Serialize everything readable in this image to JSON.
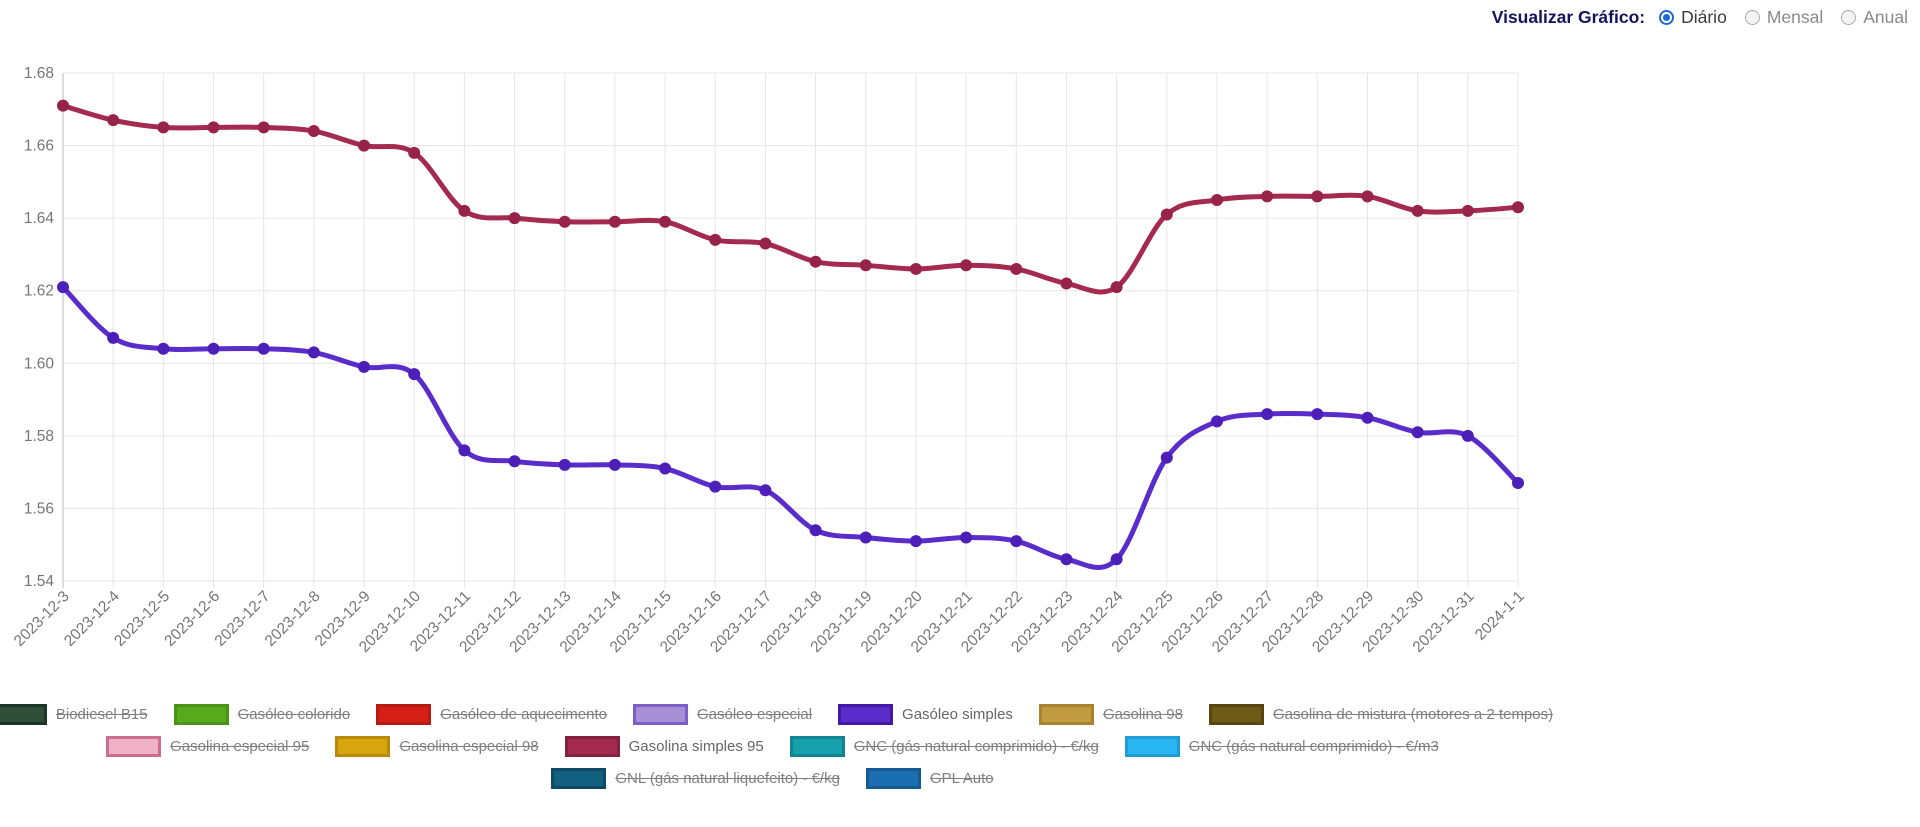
{
  "controls": {
    "label": "Visualizar Gráfico:",
    "options": [
      {
        "label": "Diário",
        "selected": true
      },
      {
        "label": "Mensal",
        "selected": false
      },
      {
        "label": "Anual",
        "selected": false
      }
    ],
    "accent_color": "#1c67d2"
  },
  "chart_data": {
    "type": "line",
    "x": [
      "2023-12-3",
      "2023-12-4",
      "2023-12-5",
      "2023-12-6",
      "2023-12-7",
      "2023-12-8",
      "2023-12-9",
      "2023-12-10",
      "2023-12-11",
      "2023-12-12",
      "2023-12-13",
      "2023-12-14",
      "2023-12-15",
      "2023-12-16",
      "2023-12-17",
      "2023-12-18",
      "2023-12-19",
      "2023-12-20",
      "2023-12-21",
      "2023-12-22",
      "2023-12-23",
      "2023-12-24",
      "2023-12-25",
      "2023-12-26",
      "2023-12-27",
      "2023-12-28",
      "2023-12-29",
      "2023-12-30",
      "2023-12-31",
      "2024-1-1"
    ],
    "series": [
      {
        "name": "Gasolina simples 95",
        "color": "#a42a50",
        "marker_color": "#97224a",
        "values": [
          1.671,
          1.667,
          1.665,
          1.665,
          1.665,
          1.664,
          1.66,
          1.658,
          1.642,
          1.64,
          1.639,
          1.639,
          1.639,
          1.634,
          1.633,
          1.628,
          1.627,
          1.626,
          1.627,
          1.626,
          1.622,
          1.621,
          1.641,
          1.645,
          1.646,
          1.646,
          1.646,
          1.642,
          1.642,
          1.643
        ]
      },
      {
        "name": "Gasóleo simples",
        "color": "#5a2dcb",
        "marker_color": "#4c1fb8",
        "values": [
          1.621,
          1.607,
          1.604,
          1.604,
          1.604,
          1.603,
          1.599,
          1.597,
          1.576,
          1.573,
          1.572,
          1.572,
          1.571,
          1.566,
          1.565,
          1.554,
          1.552,
          1.551,
          1.552,
          1.551,
          1.546,
          1.546,
          1.574,
          1.584,
          1.586,
          1.586,
          1.585,
          1.581,
          1.58,
          1.567
        ]
      }
    ],
    "ylim": [
      1.54,
      1.68
    ],
    "ytick_labels": [
      "1.54",
      "1.56",
      "1.58",
      "1.60",
      "1.62",
      "1.64",
      "1.66",
      "1.68"
    ],
    "yticks": [
      1.54,
      1.56,
      1.58,
      1.6,
      1.62,
      1.64,
      1.66,
      1.68
    ],
    "grid": true,
    "title": "",
    "xlabel": "",
    "ylabel": "",
    "legend_position": "bottom",
    "axis_text_color": "#757575",
    "grid_color": "#e6e6e6",
    "axis_line_color": "#c6c6c6"
  },
  "legend": {
    "inactive_text_color": "#808080",
    "active_text_color": "#666666",
    "rows": [
      [
        {
          "label": "Biodiesel B15",
          "fill": "#2f4f3a",
          "border": "#1d3526",
          "active": false
        },
        {
          "label": "Gasóleo colorido",
          "fill": "#56aa1c",
          "border": "#4a9317",
          "active": false
        },
        {
          "label": "Gasóleo de aquecimento",
          "fill": "#d42016",
          "border": "#b61a12",
          "active": false
        },
        {
          "label": "Gasóleo especial",
          "fill": "#a78fd6",
          "border": "#7d5ec6",
          "active": false
        },
        {
          "label": "Gasóleo simples",
          "fill": "#5a2dcb",
          "border": "#4419a6",
          "active": true
        },
        {
          "label": "Gasolina 98",
          "fill": "#c29b40",
          "border": "#a7832f",
          "active": false
        },
        {
          "label": "Gasolina de mistura (motores a 2 tempos)",
          "fill": "#6e5a17",
          "border": "#574610",
          "active": false
        }
      ],
      [
        {
          "label": "Gasolina especial 95",
          "fill": "#efb2c7",
          "border": "#cb6f92",
          "active": false
        },
        {
          "label": "Gasolina especial 98",
          "fill": "#d7a50d",
          "border": "#b78b09",
          "active": false
        },
        {
          "label": "Gasolina simples 95",
          "fill": "#a42a50",
          "border": "#85203f",
          "active": true
        },
        {
          "label": "GNC (gás natural comprimido) - €/kg",
          "fill": "#17a0ac",
          "border": "#128491",
          "active": false
        },
        {
          "label": "GNC (gás natural comprimido) - €/m3",
          "fill": "#29b5f2",
          "border": "#1f9cd3",
          "active": false
        }
      ],
      [
        {
          "label": "GNL (gás natural liquefeito) - €/kg",
          "fill": "#135f7f",
          "border": "#0e4a64",
          "active": false
        },
        {
          "label": "GPL Auto",
          "fill": "#1b6fb0",
          "border": "#155a92",
          "active": false
        }
      ]
    ]
  }
}
